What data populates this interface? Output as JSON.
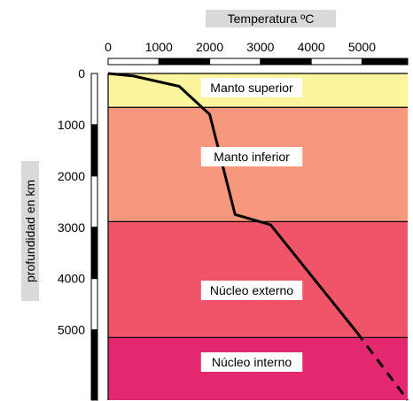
{
  "chart_data": {
    "type": "line",
    "title": "Temperatura ºC",
    "xlabel": "Temperatura ºC",
    "ylabel": "profundidad en km",
    "x_ticks": [
      "0",
      "1000",
      "2000",
      "3000",
      "4000",
      "5000"
    ],
    "y_ticks": [
      "0",
      "1000",
      "2000",
      "3000",
      "4000",
      "5000"
    ],
    "xlim": [
      0,
      5900
    ],
    "ylim": [
      0,
      6370
    ],
    "layers": [
      {
        "name": "Manto superior",
        "top": 0,
        "bottom": 660,
        "color": "#fdf59d"
      },
      {
        "name": "Manto inferior",
        "top": 660,
        "bottom": 2890,
        "color": "#f7977e"
      },
      {
        "name": "Núcleo externo",
        "top": 2890,
        "bottom": 5150,
        "color": "#ef5468"
      },
      {
        "name": "Núcleo interno",
        "top": 5150,
        "bottom": 6370,
        "color": "#e4286f"
      }
    ],
    "series": [
      {
        "style": "solid",
        "points": [
          [
            0,
            0
          ],
          [
            500,
            50
          ],
          [
            1400,
            250
          ],
          [
            2000,
            800
          ],
          [
            2500,
            2750
          ],
          [
            3200,
            2950
          ],
          [
            4900,
            5050
          ]
        ]
      },
      {
        "style": "dashed",
        "points": [
          [
            4900,
            5050
          ],
          [
            5900,
            6370
          ]
        ]
      }
    ]
  }
}
